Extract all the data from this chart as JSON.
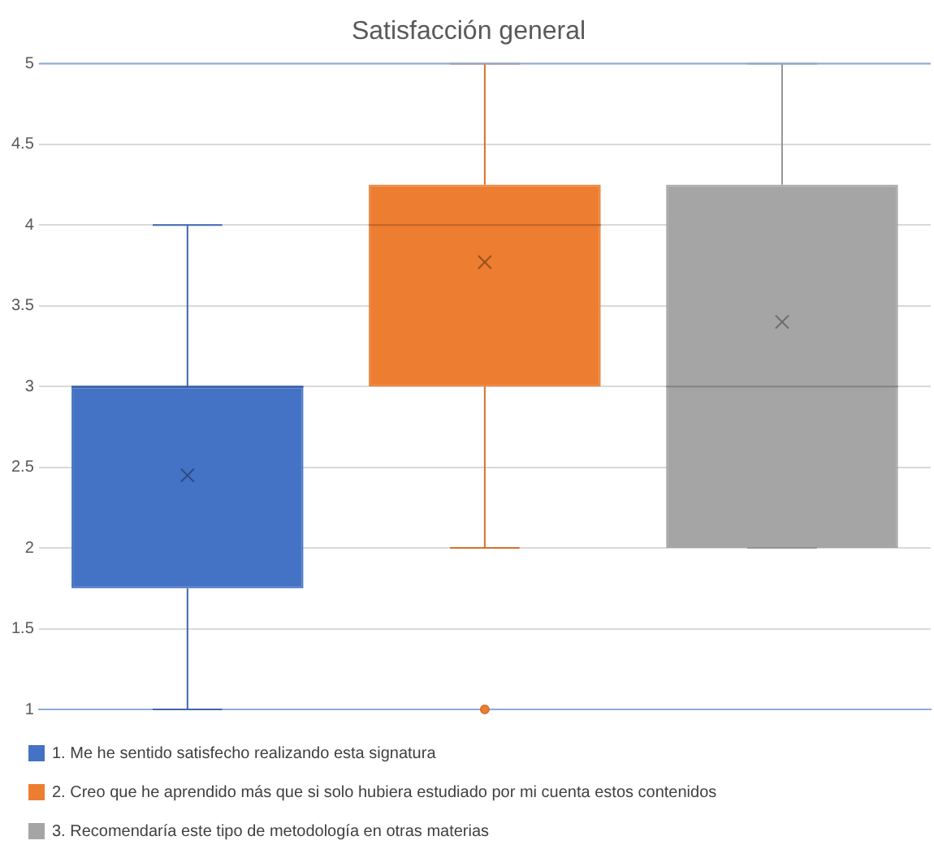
{
  "chart_data": {
    "type": "box",
    "title": "Satisfacción general",
    "categories": [
      null
    ],
    "series": [
      {
        "name": "1. Me he sentido satisfecho realizando esta signatura",
        "color": "#4472c4",
        "boxes": [
          {
            "low": 1,
            "q1": 1.75,
            "median": 3,
            "q3": 3,
            "high": 4,
            "mean": 2.45
          }
        ]
      },
      {
        "name": "2. Creo que he aprendido más que si solo hubiera estudiado por mi cuenta estos contenidos",
        "color": "#ed7d31",
        "boxes": [
          {
            "low": 2,
            "q1": 3,
            "median": 4,
            "q3": 4.25,
            "high": 5,
            "mean": 3.77,
            "outliers": [
              1
            ]
          }
        ]
      },
      {
        "name": "3. Recomendaría este tipo de metodología en otras materias",
        "color": "#a5a5a5",
        "boxes": [
          {
            "low": 2,
            "q1": 2,
            "median": 3,
            "q3": 4.25,
            "high": 5,
            "mean": 3.4
          }
        ]
      }
    ],
    "ylim": [
      1,
      5
    ],
    "yticks": [
      1,
      1.5,
      2,
      2.5,
      3,
      3.5,
      4,
      4.5,
      5
    ],
    "grid": "y",
    "legend": "bottom",
    "tick_labels": "y"
  }
}
